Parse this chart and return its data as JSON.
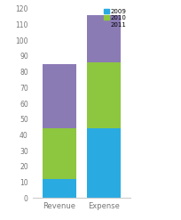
{
  "categories": [
    "Revenue",
    "Expense"
  ],
  "series": {
    "2009": [
      12,
      44
    ],
    "2010": [
      32,
      42
    ],
    "2011": [
      41,
      30
    ]
  },
  "colors": {
    "2009": "#29ABE2",
    "2010": "#8DC63F",
    "2011": "#8B7BB5"
  },
  "ylim": [
    0,
    120
  ],
  "yticks": [
    0,
    10,
    20,
    30,
    40,
    50,
    60,
    70,
    80,
    90,
    100,
    110,
    120
  ],
  "legend_labels": [
    "2009",
    "2010",
    "2011"
  ],
  "background_color": "#ffffff",
  "bar_width": 0.75,
  "title": ""
}
